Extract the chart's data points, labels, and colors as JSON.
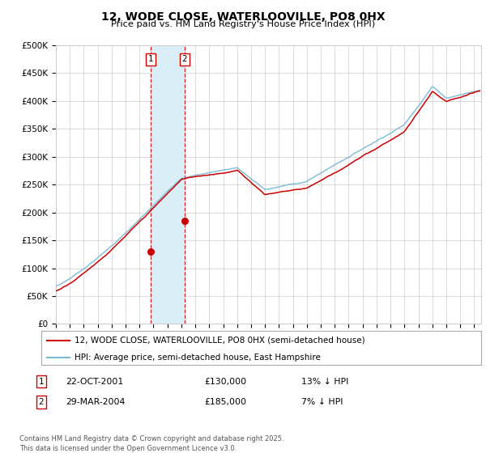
{
  "title": "12, WODE CLOSE, WATERLOOVILLE, PO8 0HX",
  "subtitle": "Price paid vs. HM Land Registry's House Price Index (HPI)",
  "ylabel_ticks": [
    "£0",
    "£50K",
    "£100K",
    "£150K",
    "£200K",
    "£250K",
    "£300K",
    "£350K",
    "£400K",
    "£450K",
    "£500K"
  ],
  "ytick_values": [
    0,
    50000,
    100000,
    150000,
    200000,
    250000,
    300000,
    350000,
    400000,
    450000,
    500000
  ],
  "xlim_start": 1995.0,
  "xlim_end": 2025.5,
  "ylim": [
    0,
    500000
  ],
  "legend_line1": "12, WODE CLOSE, WATERLOOVILLE, PO8 0HX (semi-detached house)",
  "legend_line2": "HPI: Average price, semi-detached house, East Hampshire",
  "line1_color": "#cc0000",
  "line2_color": "#7ab8d4",
  "transaction1_date": 2001.81,
  "transaction1_price": 130000,
  "transaction2_date": 2004.24,
  "transaction2_price": 185000,
  "transaction1_date_str": "22-OCT-2001",
  "transaction2_date_str": "29-MAR-2004",
  "transaction1_hpi_diff": "13% ↓ HPI",
  "transaction2_hpi_diff": "7% ↓ HPI",
  "footer": "Contains HM Land Registry data © Crown copyright and database right 2025.\nThis data is licensed under the Open Government Licence v3.0.",
  "background_color": "#ffffff",
  "grid_color": "#cccccc",
  "vspan_color": "#daeef8",
  "vline_color": "#cc0000"
}
